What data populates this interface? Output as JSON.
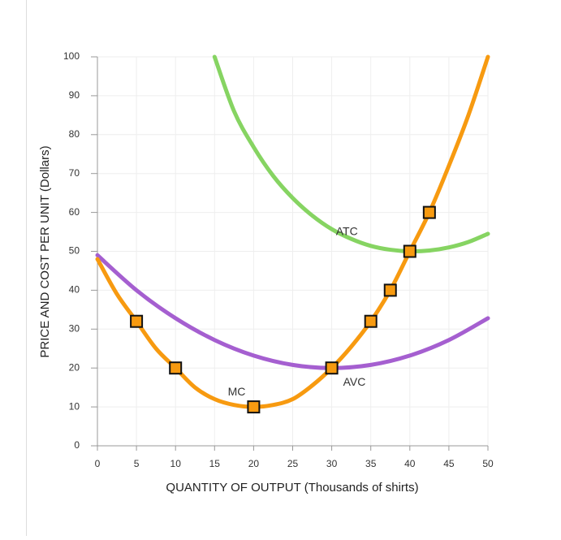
{
  "chart_data": {
    "type": "line",
    "x_label": "QUANTITY OF OUTPUT (Thousands of shirts)",
    "y_label": "PRICE AND COST PER UNIT (Dollars)",
    "xlim": [
      0,
      50
    ],
    "ylim": [
      0,
      100
    ],
    "xticks": [
      0,
      5,
      10,
      15,
      20,
      25,
      30,
      35,
      40,
      45,
      50
    ],
    "yticks": [
      0,
      10,
      20,
      30,
      40,
      50,
      60,
      70,
      80,
      90,
      100
    ],
    "grid": true,
    "series": [
      {
        "name": "AVC",
        "color": "#a55fd0",
        "x": [
          0,
          5,
          10,
          15,
          20,
          25,
          30,
          35,
          40,
          45,
          50
        ],
        "values": [
          49,
          40,
          32.8,
          27.2,
          23.2,
          20.8,
          20,
          20.8,
          23.2,
          27.2,
          32.8
        ]
      },
      {
        "name": "ATC",
        "color": "#86d462",
        "x": [
          15,
          17.5,
          20,
          22.5,
          25,
          27.5,
          30,
          32.5,
          35,
          37.5,
          40,
          42.5,
          45,
          47.5,
          50
        ],
        "values": [
          100,
          86,
          76.8,
          69.4,
          63.7,
          59.2,
          55.7,
          53.2,
          51.4,
          50.4,
          50,
          50.2,
          51,
          52.4,
          54.5
        ]
      },
      {
        "name": "MC",
        "color": "#f79a10",
        "x": [
          0,
          2.5,
          5,
          7.5,
          10,
          12.5,
          15,
          17.5,
          20,
          22.5,
          25,
          27.5,
          30,
          32.5,
          35,
          37.5,
          40,
          42.5,
          45,
          47.5,
          50
        ],
        "values": [
          48,
          39,
          32,
          25,
          20,
          15,
          12,
          10.5,
          10,
          10.5,
          12,
          15.5,
          20,
          25.5,
          32,
          40,
          50,
          60,
          72,
          85,
          100
        ]
      }
    ],
    "markers": {
      "color": "#f79a10",
      "x": [
        5,
        10,
        20,
        30,
        35,
        37.5,
        40,
        42.5
      ],
      "values": [
        32,
        20,
        10,
        20,
        32,
        40,
        50,
        60
      ]
    }
  }
}
